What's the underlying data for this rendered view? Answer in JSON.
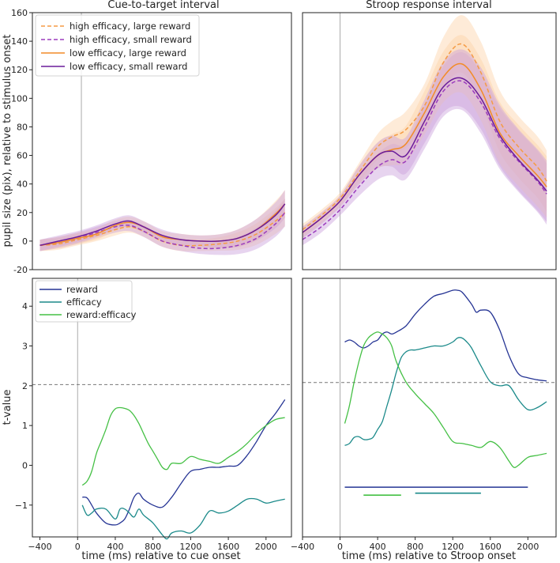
{
  "chart_data": [
    {
      "id": "cue_pupil",
      "type": "line",
      "title": "Cue-to-target interval",
      "ylabel": "pupil size (pix), relative to stimulus onset",
      "xlim": [
        -480,
        2270
      ],
      "ylim": [
        -20,
        160
      ],
      "yticks": [
        "-20",
        "0",
        "20",
        "40",
        "60",
        "80",
        "100",
        "120",
        "140",
        "160"
      ],
      "vline_x": 40,
      "series": [
        {
          "name": "high efficacy, large reward",
          "color": "#f59b45",
          "dash": true,
          "band": "#fcd3a8",
          "x": [
            -400,
            -200,
            0,
            200,
            400,
            550,
            700,
            900,
            1100,
            1300,
            1500,
            1700,
            1900,
            2100,
            2200
          ],
          "y": [
            -3,
            -2,
            1,
            4,
            8,
            10,
            7,
            0,
            -3,
            -3,
            -2,
            0,
            5,
            14,
            20
          ]
        },
        {
          "name": "high efficacy, small reward",
          "color": "#9b3bbd",
          "dash": true,
          "band": "#c9a0dc",
          "x": [
            -400,
            -200,
            0,
            200,
            400,
            550,
            700,
            900,
            1100,
            1300,
            1500,
            1700,
            1900,
            2100,
            2200
          ],
          "y": [
            -3,
            -1,
            2,
            6,
            10,
            11,
            7,
            0,
            -3,
            -5,
            -5,
            -3,
            2,
            12,
            20
          ]
        },
        {
          "name": "low efficacy, large reward",
          "color": "#f28c28",
          "dash": false,
          "band": "#fcd3a8",
          "x": [
            -400,
            -200,
            0,
            200,
            400,
            550,
            700,
            900,
            1100,
            1300,
            1500,
            1700,
            1900,
            2100,
            2200
          ],
          "y": [
            -3,
            -1,
            2,
            5,
            11,
            13,
            10,
            3,
            1,
            0,
            0,
            2,
            8,
            19,
            26
          ]
        },
        {
          "name": "low efficacy, small reward",
          "color": "#6a1b9a",
          "dash": false,
          "band": "#c9a0dc",
          "x": [
            -400,
            -200,
            0,
            200,
            400,
            550,
            700,
            900,
            1100,
            1300,
            1500,
            1700,
            1900,
            2100,
            2200
          ],
          "y": [
            -3,
            0,
            3,
            7,
            12,
            14,
            10,
            4,
            1,
            0,
            0,
            2,
            8,
            18,
            26
          ]
        }
      ]
    },
    {
      "id": "stroop_pupil",
      "type": "line",
      "title": "Stroop response interval",
      "xlim": [
        -400,
        2300
      ],
      "ylim": [
        -20,
        160
      ],
      "vline_x": 0,
      "series": [
        {
          "name": "high efficacy, large reward",
          "color": "#f59b45",
          "dash": true,
          "x": [
            -400,
            -200,
            0,
            200,
            400,
            550,
            700,
            900,
            1100,
            1300,
            1500,
            1700,
            1900,
            2100,
            2200
          ],
          "y": [
            8,
            18,
            30,
            48,
            66,
            73,
            78,
            95,
            125,
            138,
            118,
            84,
            66,
            52,
            42
          ]
        },
        {
          "name": "high efficacy, small reward",
          "color": "#9b3bbd",
          "dash": true,
          "x": [
            -400,
            -200,
            0,
            200,
            400,
            550,
            700,
            900,
            1100,
            1300,
            1500,
            1700,
            1900,
            2100,
            2200
          ],
          "y": [
            1,
            10,
            22,
            38,
            52,
            57,
            56,
            80,
            105,
            112,
            97,
            72,
            56,
            42,
            33
          ]
        },
        {
          "name": "low efficacy, large reward",
          "color": "#f28c28",
          "dash": false,
          "x": [
            -400,
            -200,
            0,
            200,
            400,
            550,
            700,
            900,
            1100,
            1300,
            1500,
            1700,
            1900,
            2100,
            2200
          ],
          "y": [
            6,
            16,
            28,
            46,
            60,
            64,
            68,
            90,
            115,
            124,
            106,
            76,
            60,
            46,
            38
          ]
        },
        {
          "name": "low efficacy, small reward",
          "color": "#6a1b9a",
          "dash": false,
          "x": [
            -400,
            -200,
            0,
            200,
            400,
            550,
            700,
            900,
            1100,
            1300,
            1500,
            1700,
            1900,
            2100,
            2200
          ],
          "y": [
            6,
            16,
            28,
            46,
            60,
            63,
            60,
            84,
            108,
            114,
            100,
            74,
            57,
            43,
            35
          ]
        }
      ]
    },
    {
      "id": "cue_t",
      "type": "line",
      "ylabel": "t-value",
      "xlabel": "time (ms) relative to cue onset",
      "xlim": [
        -480,
        2270
      ],
      "ylim": [
        -1.8,
        4.7
      ],
      "yticks": [
        "−1",
        "0",
        "1",
        "2",
        "3",
        "4"
      ],
      "xticks": [
        "−400",
        "0",
        "400",
        "800",
        "1200",
        "1600",
        "2000"
      ],
      "vline_x": 0,
      "hline_y": 2.03,
      "series": [
        {
          "name": "reward",
          "color": "#253494",
          "x": [
            50,
            100,
            150,
            200,
            300,
            400,
            450,
            500,
            550,
            600,
            650,
            700,
            800,
            900,
            1000,
            1100,
            1200,
            1300,
            1400,
            1500,
            1600,
            1700,
            1800,
            1900,
            2000,
            2100,
            2200
          ],
          "y": [
            -0.8,
            -0.82,
            -1.0,
            -1.2,
            -1.45,
            -1.5,
            -1.45,
            -1.35,
            -1.1,
            -0.8,
            -0.7,
            -0.85,
            -1.0,
            -1.05,
            -0.8,
            -0.45,
            -0.15,
            -0.1,
            -0.05,
            -0.05,
            -0.02,
            0.0,
            0.25,
            0.6,
            1.0,
            1.3,
            1.65
          ]
        },
        {
          "name": "efficacy",
          "color": "#1b8a8a",
          "x": [
            50,
            100,
            150,
            200,
            300,
            400,
            450,
            500,
            550,
            600,
            650,
            700,
            800,
            900,
            950,
            1000,
            1100,
            1200,
            1300,
            1400,
            1500,
            1600,
            1700,
            1800,
            1900,
            2000,
            2100,
            2200
          ],
          "y": [
            -1.0,
            -1.25,
            -1.2,
            -1.1,
            -1.1,
            -1.35,
            -1.1,
            -1.1,
            -1.2,
            -1.3,
            -1.1,
            -1.25,
            -1.45,
            -1.75,
            -1.85,
            -1.7,
            -1.65,
            -1.7,
            -1.5,
            -1.15,
            -1.2,
            -1.15,
            -1.0,
            -0.85,
            -0.85,
            -0.95,
            -0.9,
            -0.85
          ]
        },
        {
          "name": "reward:efficacy",
          "color": "#45c045",
          "x": [
            50,
            100,
            150,
            200,
            250,
            300,
            350,
            400,
            450,
            500,
            550,
            600,
            650,
            700,
            750,
            800,
            850,
            900,
            950,
            1000,
            1100,
            1200,
            1300,
            1400,
            1500,
            1600,
            1700,
            1800,
            1900,
            2000,
            2100,
            2200
          ],
          "y": [
            -0.5,
            -0.4,
            -0.15,
            0.3,
            0.6,
            0.9,
            1.25,
            1.42,
            1.45,
            1.43,
            1.38,
            1.25,
            1.05,
            0.8,
            0.55,
            0.35,
            0.15,
            -0.05,
            -0.1,
            0.05,
            0.05,
            0.22,
            0.15,
            0.1,
            0.05,
            0.2,
            0.35,
            0.55,
            0.8,
            1.0,
            1.15,
            1.2
          ]
        }
      ],
      "legend": [
        "reward",
        "efficacy",
        "reward:efficacy"
      ]
    },
    {
      "id": "stroop_t",
      "type": "line",
      "xlabel": "time (ms) relative to Stroop onset",
      "xlim": [
        -400,
        2300
      ],
      "ylim": [
        -1.8,
        4.7
      ],
      "xticks": [
        "−400",
        "0",
        "400",
        "800",
        "1200",
        "1600",
        "2000"
      ],
      "vline_x": 0,
      "hline_y": 2.08,
      "series": [
        {
          "name": "reward",
          "color": "#253494",
          "x": [
            50,
            100,
            150,
            200,
            250,
            300,
            350,
            400,
            450,
            500,
            550,
            600,
            700,
            800,
            900,
            1000,
            1100,
            1200,
            1250,
            1300,
            1400,
            1450,
            1500,
            1600,
            1700,
            1800,
            1900,
            2000,
            2100,
            2200
          ],
          "y": [
            3.1,
            3.15,
            3.1,
            3.0,
            2.95,
            3.0,
            3.1,
            3.15,
            3.3,
            3.35,
            3.3,
            3.35,
            3.5,
            3.8,
            4.05,
            4.25,
            4.32,
            4.4,
            4.4,
            4.35,
            4.05,
            3.85,
            3.9,
            3.85,
            3.4,
            2.75,
            2.3,
            2.2,
            2.15,
            2.12
          ]
        },
        {
          "name": "efficacy",
          "color": "#1b8a8a",
          "x": [
            50,
            100,
            150,
            200,
            250,
            300,
            350,
            400,
            450,
            500,
            550,
            600,
            650,
            700,
            750,
            800,
            900,
            1000,
            1100,
            1200,
            1250,
            1300,
            1350,
            1400,
            1500,
            1600,
            1700,
            1800,
            1900,
            2000,
            2100,
            2200
          ],
          "y": [
            0.5,
            0.55,
            0.7,
            0.72,
            0.65,
            0.65,
            0.7,
            0.9,
            1.1,
            1.5,
            1.9,
            2.35,
            2.7,
            2.85,
            2.9,
            2.9,
            2.95,
            3.0,
            3.0,
            3.1,
            3.2,
            3.2,
            3.1,
            2.95,
            2.5,
            2.1,
            2.0,
            2.0,
            1.65,
            1.4,
            1.45,
            1.6
          ]
        },
        {
          "name": "reward:efficacy",
          "color": "#45c045",
          "x": [
            50,
            100,
            150,
            200,
            250,
            300,
            350,
            400,
            450,
            500,
            550,
            600,
            700,
            800,
            900,
            1000,
            1100,
            1200,
            1300,
            1400,
            1500,
            1600,
            1700,
            1800,
            1850,
            1900,
            2000,
            2100,
            2200
          ],
          "y": [
            1.05,
            1.5,
            2.1,
            2.6,
            3.0,
            3.2,
            3.3,
            3.35,
            3.3,
            3.2,
            3.0,
            2.6,
            2.1,
            1.8,
            1.55,
            1.3,
            0.95,
            0.6,
            0.55,
            0.5,
            0.45,
            0.6,
            0.45,
            0.1,
            -0.05,
            0.0,
            0.2,
            0.25,
            0.3
          ]
        }
      ],
      "sig_bars": [
        {
          "color": "#253494",
          "x0": 50,
          "x1": 2000,
          "y": -0.55
        },
        {
          "color": "#45c045",
          "x0": 250,
          "x1": 650,
          "y": -0.75
        },
        {
          "color": "#1b8a8a",
          "x0": 800,
          "x1": 1500,
          "y": -0.7
        }
      ]
    }
  ]
}
